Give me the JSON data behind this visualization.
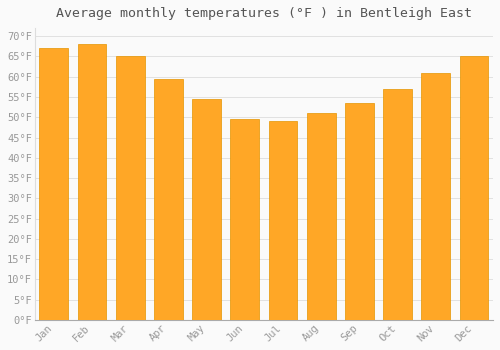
{
  "title": "Average monthly temperatures (°F ) in Bentleigh East",
  "months": [
    "Jan",
    "Feb",
    "Mar",
    "Apr",
    "May",
    "Jun",
    "Jul",
    "Aug",
    "Sep",
    "Oct",
    "Nov",
    "Dec"
  ],
  "values": [
    67.0,
    68.0,
    65.0,
    59.5,
    54.5,
    49.5,
    49.0,
    51.0,
    53.5,
    57.0,
    61.0,
    65.0
  ],
  "bar_color": "#FFA726",
  "bar_edge_color": "#E59400",
  "background_color": "#FAFAFA",
  "grid_color": "#DDDDDD",
  "ylim": [
    0,
    72
  ],
  "yticks": [
    0,
    5,
    10,
    15,
    20,
    25,
    30,
    35,
    40,
    45,
    50,
    55,
    60,
    65,
    70
  ],
  "title_fontsize": 9.5,
  "tick_fontsize": 7.5,
  "tick_color": "#999999",
  "title_color": "#555555",
  "bar_width": 0.75,
  "figsize": [
    5.0,
    3.5
  ],
  "dpi": 100
}
